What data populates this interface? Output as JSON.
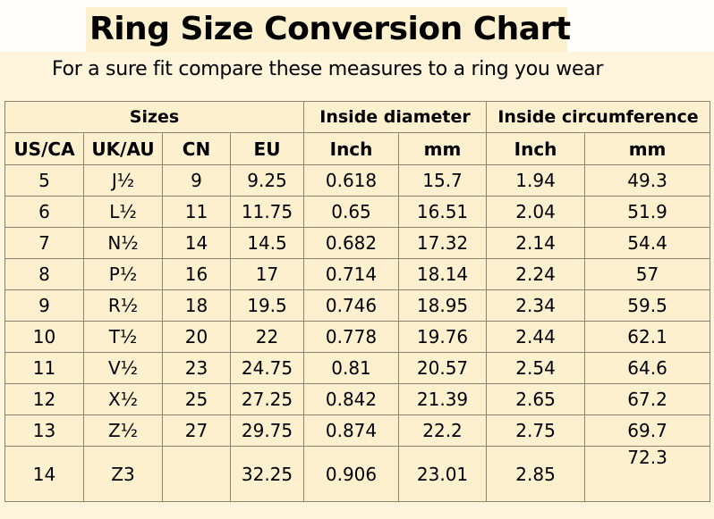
{
  "title": "Ring Size Conversion Chart",
  "subtitle": "For a sure fit compare these measures to a ring you wear",
  "table": {
    "group_headers": [
      "Sizes",
      "Inside diameter",
      "Inside circumference"
    ],
    "column_headers": [
      "US/CA",
      "UK/AU",
      "CN",
      "EU",
      "Inch",
      "mm",
      "Inch",
      "mm"
    ],
    "rows": [
      [
        "5",
        "J½",
        "9",
        "9.25",
        "0.618",
        "15.7",
        "1.94",
        "49.3"
      ],
      [
        "6",
        "L½",
        "11",
        "11.75",
        "0.65",
        "16.51",
        "2.04",
        "51.9"
      ],
      [
        "7",
        "N½",
        "14",
        "14.5",
        "0.682",
        "17.32",
        "2.14",
        "54.4"
      ],
      [
        "8",
        "P½",
        "16",
        "17",
        "0.714",
        "18.14",
        "2.24",
        "57"
      ],
      [
        "9",
        "R½",
        "18",
        "19.5",
        "0.746",
        "18.95",
        "2.34",
        "59.5"
      ],
      [
        "10",
        "T½",
        "20",
        "22",
        "0.778",
        "19.76",
        "2.44",
        "62.1"
      ],
      [
        "11",
        "V½",
        "23",
        "24.75",
        "0.81",
        "20.57",
        "2.54",
        "64.6"
      ],
      [
        "12",
        "X½",
        "25",
        "27.25",
        "0.842",
        "21.39",
        "2.65",
        "67.2"
      ],
      [
        "13",
        "Z½",
        "27",
        "29.75",
        "0.874",
        "22.2",
        "2.75",
        "69.7"
      ],
      [
        "14",
        "Z3",
        "",
        "32.25",
        "0.906",
        "23.01",
        "2.85",
        "72.3"
      ]
    ]
  }
}
